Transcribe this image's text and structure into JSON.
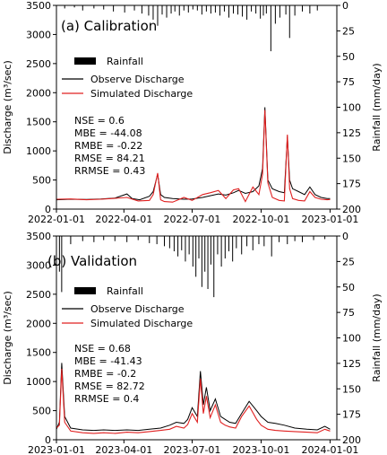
{
  "chart_data": [
    {
      "type": "line",
      "title": "(a) Calibration",
      "ylabel": "Discharge (m³/sec)",
      "y2label": "Rainfall (mm/day)",
      "xlim": [
        "2022-01-01",
        "2023-01-10"
      ],
      "ylim": [
        0,
        3500
      ],
      "y2lim": [
        200,
        0
      ],
      "xticks": [
        "2022-01-01",
        "2022-04-01",
        "2022-07-01",
        "2022-10-01",
        "2023-01-01"
      ],
      "yticks": [
        "0",
        "500",
        "1000",
        "1500",
        "2000",
        "2500",
        "3000",
        "3500"
      ],
      "y2ticks": [
        "0",
        "25",
        "50",
        "75",
        "100",
        "125",
        "150",
        "175",
        "200"
      ],
      "legend_position": "upper-left",
      "series": [
        {
          "name": "Rainfall",
          "type": "bar",
          "color": "#000000",
          "x": [
            "2022-01-12",
            "2022-01-25",
            "2022-02-05",
            "2022-02-20",
            "2022-03-05",
            "2022-03-18",
            "2022-04-02",
            "2022-04-15",
            "2022-04-25",
            "2022-05-04",
            "2022-05-10",
            "2022-05-16",
            "2022-05-22",
            "2022-05-28",
            "2022-06-03",
            "2022-06-08",
            "2022-06-14",
            "2022-06-20",
            "2022-06-26",
            "2022-07-02",
            "2022-07-08",
            "2022-07-14",
            "2022-07-20",
            "2022-07-26",
            "2022-08-01",
            "2022-08-07",
            "2022-08-13",
            "2022-08-19",
            "2022-08-25",
            "2022-08-31",
            "2022-09-06",
            "2022-09-12",
            "2022-09-18",
            "2022-09-24",
            "2022-09-30",
            "2022-10-04",
            "2022-10-08",
            "2022-10-14",
            "2022-10-20",
            "2022-10-26",
            "2022-11-03",
            "2022-11-08",
            "2022-11-15",
            "2022-11-25",
            "2022-12-05",
            "2022-12-15"
          ],
          "values": [
            3,
            2,
            5,
            3,
            4,
            6,
            7,
            5,
            8,
            10,
            14,
            20,
            9,
            12,
            8,
            6,
            10,
            5,
            7,
            4,
            5,
            9,
            6,
            8,
            7,
            10,
            6,
            12,
            8,
            9,
            11,
            14,
            6,
            8,
            13,
            10,
            8,
            45,
            18,
            12,
            9,
            32,
            10,
            6,
            8,
            5
          ]
        },
        {
          "name": "Observe Discharge",
          "color": "#000000",
          "x": [
            "2022-01-01",
            "2022-01-20",
            "2022-02-10",
            "2022-03-01",
            "2022-03-20",
            "2022-04-05",
            "2022-04-12",
            "2022-04-22",
            "2022-05-05",
            "2022-05-10",
            "2022-05-16",
            "2022-05-20",
            "2022-05-25",
            "2022-06-05",
            "2022-06-20",
            "2022-07-01",
            "2022-07-15",
            "2022-07-25",
            "2022-08-05",
            "2022-08-15",
            "2022-08-25",
            "2022-09-01",
            "2022-09-10",
            "2022-09-20",
            "2022-09-28",
            "2022-10-03",
            "2022-10-06",
            "2022-10-10",
            "2022-10-16",
            "2022-10-25",
            "2022-11-01",
            "2022-11-05",
            "2022-11-08",
            "2022-11-12",
            "2022-11-20",
            "2022-11-28",
            "2022-12-05",
            "2022-12-12",
            "2022-12-20",
            "2022-12-28",
            "2023-01-01"
          ],
          "values": [
            160,
            170,
            165,
            175,
            190,
            260,
            180,
            160,
            220,
            300,
            600,
            250,
            200,
            180,
            170,
            175,
            200,
            230,
            260,
            240,
            280,
            320,
            270,
            300,
            400,
            700,
            1750,
            500,
            350,
            300,
            280,
            1250,
            500,
            350,
            300,
            250,
            380,
            250,
            200,
            180,
            180
          ]
        },
        {
          "name": "Simulated Discharge",
          "color": "#e02020",
          "x": [
            "2022-01-01",
            "2022-01-20",
            "2022-02-10",
            "2022-03-01",
            "2022-03-20",
            "2022-04-05",
            "2022-04-20",
            "2022-05-05",
            "2022-05-10",
            "2022-05-16",
            "2022-05-20",
            "2022-05-25",
            "2022-06-05",
            "2022-06-20",
            "2022-07-01",
            "2022-07-15",
            "2022-07-25",
            "2022-08-05",
            "2022-08-15",
            "2022-08-25",
            "2022-09-01",
            "2022-09-10",
            "2022-09-20",
            "2022-09-28",
            "2022-10-03",
            "2022-10-06",
            "2022-10-10",
            "2022-10-16",
            "2022-10-25",
            "2022-11-01",
            "2022-11-05",
            "2022-11-08",
            "2022-11-12",
            "2022-11-20",
            "2022-11-28",
            "2022-12-05",
            "2022-12-12",
            "2022-12-20",
            "2022-12-28",
            "2023-01-01"
          ],
          "values": [
            170,
            175,
            160,
            170,
            185,
            200,
            140,
            150,
            250,
            620,
            160,
            130,
            120,
            200,
            150,
            250,
            280,
            320,
            180,
            330,
            350,
            130,
            380,
            250,
            600,
            1700,
            450,
            200,
            150,
            140,
            1280,
            350,
            180,
            150,
            140,
            300,
            200,
            170,
            160,
            165
          ]
        }
      ],
      "annotations": [
        "NSE = 0.6",
        "MBE = -44.08",
        "RMBE = -0.22",
        "RMSE = 84.21",
        "RRMSE = 0.43"
      ]
    },
    {
      "type": "line",
      "title": "(b) Validation",
      "ylabel": "Discharge (m³/sec)",
      "y2label": "Rainfall (mm/day)",
      "xlim": [
        "2023-01-01",
        "2024-01-10"
      ],
      "ylim": [
        0,
        3500
      ],
      "y2lim": [
        200,
        0
      ],
      "xticks": [
        "2023-01-01",
        "2023-04-01",
        "2023-07-01",
        "2023-10-01",
        "2024-01-01"
      ],
      "yticks": [
        "0",
        "500",
        "1000",
        "1500",
        "2000",
        "2500",
        "3000",
        "3500"
      ],
      "y2ticks": [
        "0",
        "25",
        "50",
        "75",
        "100",
        "125",
        "150",
        "175",
        "200"
      ],
      "legend_position": "upper-left",
      "series": [
        {
          "name": "Rainfall",
          "type": "bar",
          "color": "#000000",
          "x": [
            "2023-01-05",
            "2023-01-08",
            "2023-01-20",
            "2023-02-05",
            "2023-02-20",
            "2023-03-05",
            "2023-03-20",
            "2023-04-05",
            "2023-04-20",
            "2023-05-05",
            "2023-05-15",
            "2023-05-25",
            "2023-06-01",
            "2023-06-07",
            "2023-06-12",
            "2023-06-17",
            "2023-06-22",
            "2023-06-27",
            "2023-07-02",
            "2023-07-06",
            "2023-07-10",
            "2023-07-14",
            "2023-07-18",
            "2023-07-22",
            "2023-07-26",
            "2023-07-30",
            "2023-08-04",
            "2023-08-09",
            "2023-08-14",
            "2023-08-19",
            "2023-08-24",
            "2023-08-29",
            "2023-09-05",
            "2023-09-12",
            "2023-09-20",
            "2023-09-28",
            "2023-10-05",
            "2023-10-15",
            "2023-10-25",
            "2023-11-05",
            "2023-11-15",
            "2023-11-25",
            "2023-12-10",
            "2023-12-25"
          ],
          "values": [
            35,
            55,
            8,
            5,
            6,
            4,
            5,
            6,
            4,
            7,
            8,
            10,
            12,
            15,
            20,
            14,
            25,
            18,
            30,
            40,
            22,
            50,
            35,
            52,
            28,
            60,
            18,
            30,
            22,
            15,
            25,
            12,
            18,
            10,
            14,
            8,
            10,
            20,
            6,
            8,
            5,
            6,
            4,
            3
          ]
        },
        {
          "name": "Observe Discharge",
          "color": "#000000",
          "x": [
            "2023-01-01",
            "2023-01-05",
            "2023-01-08",
            "2023-01-12",
            "2023-01-20",
            "2023-02-05",
            "2023-02-20",
            "2023-03-05",
            "2023-03-20",
            "2023-04-05",
            "2023-04-20",
            "2023-05-05",
            "2023-05-20",
            "2023-06-01",
            "2023-06-10",
            "2023-06-20",
            "2023-06-25",
            "2023-07-01",
            "2023-07-08",
            "2023-07-12",
            "2023-07-16",
            "2023-07-20",
            "2023-07-25",
            "2023-08-01",
            "2023-08-08",
            "2023-08-14",
            "2023-08-20",
            "2023-08-28",
            "2023-09-05",
            "2023-09-15",
            "2023-09-25",
            "2023-10-01",
            "2023-10-10",
            "2023-10-20",
            "2023-11-01",
            "2023-11-15",
            "2023-12-01",
            "2023-12-15",
            "2023-12-25",
            "2024-01-01"
          ],
          "values": [
            180,
            300,
            1320,
            400,
            200,
            170,
            160,
            170,
            160,
            170,
            160,
            180,
            200,
            250,
            300,
            280,
            350,
            550,
            400,
            1180,
            600,
            900,
            500,
            700,
            400,
            350,
            300,
            280,
            450,
            660,
            500,
            400,
            300,
            280,
            250,
            200,
            180,
            170,
            230,
            180
          ]
        },
        {
          "name": "Simulated Discharge",
          "color": "#e02020",
          "x": [
            "2023-01-01",
            "2023-01-05",
            "2023-01-08",
            "2023-01-12",
            "2023-01-20",
            "2023-02-05",
            "2023-02-20",
            "2023-03-05",
            "2023-03-20",
            "2023-04-05",
            "2023-04-20",
            "2023-05-05",
            "2023-05-20",
            "2023-06-01",
            "2023-06-10",
            "2023-06-20",
            "2023-06-25",
            "2023-07-01",
            "2023-07-08",
            "2023-07-12",
            "2023-07-16",
            "2023-07-20",
            "2023-07-25",
            "2023-08-01",
            "2023-08-08",
            "2023-08-14",
            "2023-08-20",
            "2023-08-28",
            "2023-09-05",
            "2023-09-15",
            "2023-09-25",
            "2023-10-01",
            "2023-10-10",
            "2023-10-20",
            "2023-11-01",
            "2023-11-15",
            "2023-12-01",
            "2023-12-15",
            "2023-12-25",
            "2024-01-01"
          ],
          "values": [
            200,
            250,
            1220,
            300,
            150,
            120,
            110,
            120,
            110,
            130,
            120,
            140,
            160,
            180,
            230,
            200,
            260,
            450,
            300,
            1050,
            450,
            750,
            380,
            600,
            300,
            250,
            220,
            200,
            400,
            580,
            350,
            250,
            180,
            160,
            150,
            140,
            130,
            120,
            180,
            150
          ]
        }
      ],
      "annotations": [
        "NSE = 0.68",
        "MBE = -41.43",
        "RMBE = -0.2",
        "RMSE = 82.72",
        "RRMSE = 0.4"
      ]
    }
  ]
}
